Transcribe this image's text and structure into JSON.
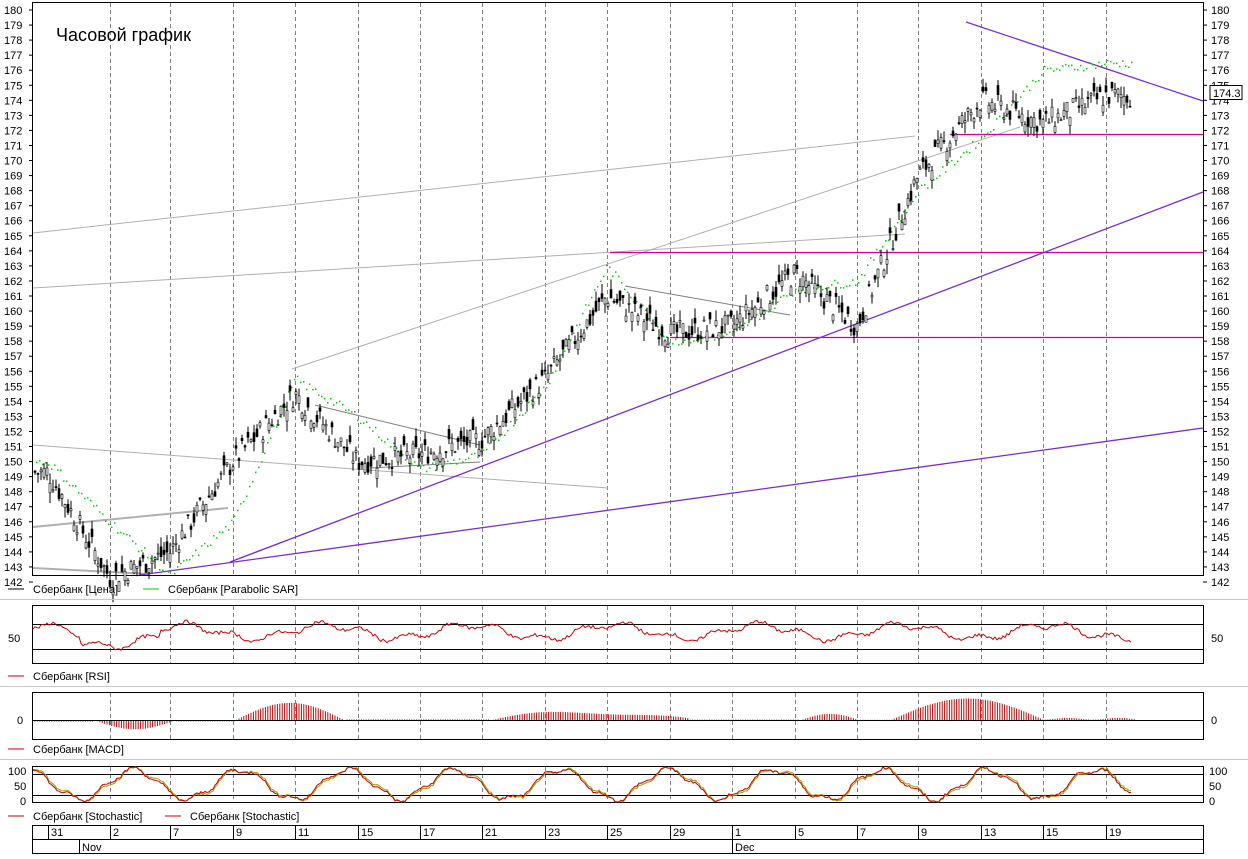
{
  "title": "Часовой график",
  "colors": {
    "price": "#000000",
    "sar": "#00cc00",
    "rsi": "#cc0000",
    "macd": "#cc0000",
    "stoch_k": "#cc0000",
    "stoch_d": "#a0a000",
    "trend": "#7a2bd0",
    "level": "#d000a0",
    "channel": "#a0a0a0"
  },
  "price_axis": {
    "min": 142,
    "max": 180,
    "ticks": [
      142,
      143,
      144,
      145,
      146,
      147,
      148,
      149,
      150,
      151,
      152,
      153,
      154,
      155,
      156,
      157,
      158,
      159,
      160,
      161,
      162,
      163,
      164,
      165,
      166,
      167,
      168,
      169,
      170,
      171,
      172,
      173,
      174,
      175,
      176,
      177,
      178,
      179,
      180
    ],
    "last_price": "174.3"
  },
  "legends": {
    "price": [
      {
        "label": "Сбербанк [Цена]",
        "color": "#000000"
      },
      {
        "label": "Сбербанк [Parabolic SAR]",
        "color": "#00cc00"
      }
    ],
    "rsi": [
      {
        "label": "Сбербанк [RSI]",
        "color": "#cc0000"
      }
    ],
    "macd": [
      {
        "label": "Сбербанк [MACD]",
        "color": "#cc0000"
      }
    ],
    "stoch": [
      {
        "label": "Сбербанк [Stochastic]",
        "color": "#cc0000"
      },
      {
        "label": "Сбербанк [Stochastic]",
        "color": "#cc0000"
      }
    ]
  },
  "rsi_axis": {
    "label": "50",
    "levels": [
      70,
      50,
      30
    ]
  },
  "macd_axis": {
    "label": "0"
  },
  "stoch_axis": {
    "labels": [
      "100",
      "50",
      "0"
    ],
    "levels": [
      80,
      20
    ]
  },
  "date_axis": {
    "days": [
      "31",
      "2",
      "7",
      "9",
      "11",
      "15",
      "17",
      "21",
      "23",
      "25",
      "29",
      "1",
      "5",
      "7",
      "9",
      "13",
      "15",
      "19"
    ],
    "months": [
      "Nov",
      "Dec"
    ]
  },
  "chart_data": {
    "type": "candlestick",
    "title": "Часовой график",
    "series": [
      {
        "name": "Сбербанк [Цена]",
        "x": [
          "31",
          "2",
          "7",
          "9",
          "11",
          "15",
          "17",
          "21",
          "23",
          "25",
          "29",
          "1",
          "5",
          "7",
          "9",
          "13",
          "15",
          "19"
        ],
        "values": [
          149.3,
          142.3,
          144.0,
          150.0,
          154.5,
          150.0,
          150.5,
          151.5,
          155.5,
          161.0,
          158.5,
          159.0,
          162.5,
          159.0,
          169.0,
          174.0,
          172.5,
          174.3
        ]
      },
      {
        "name": "Сбербанк [Parabolic SAR]",
        "x": [
          "31",
          "2",
          "7",
          "9",
          "11",
          "15",
          "17",
          "21",
          "23",
          "25",
          "29",
          "1",
          "5",
          "7",
          "9",
          "13",
          "15",
          "19"
        ],
        "values": [
          150.0,
          146.0,
          142.5,
          146.0,
          155.5,
          153.0,
          149.5,
          150.5,
          155.0,
          163.0,
          158.0,
          158.5,
          161.5,
          162.0,
          168.0,
          171.5,
          176.0,
          176.5
        ]
      }
    ],
    "ylim": [
      142,
      180
    ],
    "grid": true,
    "legend": "bottom-left"
  }
}
